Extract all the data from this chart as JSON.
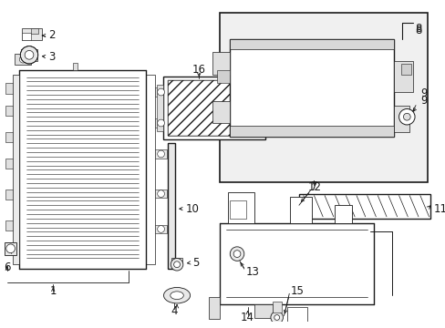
{
  "bg_color": "#ffffff",
  "line_color": "#1a1a1a",
  "inset_bg": "#f0f0f0",
  "label_fontsize": 8.5,
  "lw_main": 1.0,
  "lw_thin": 0.6,
  "lw_thick": 1.2
}
